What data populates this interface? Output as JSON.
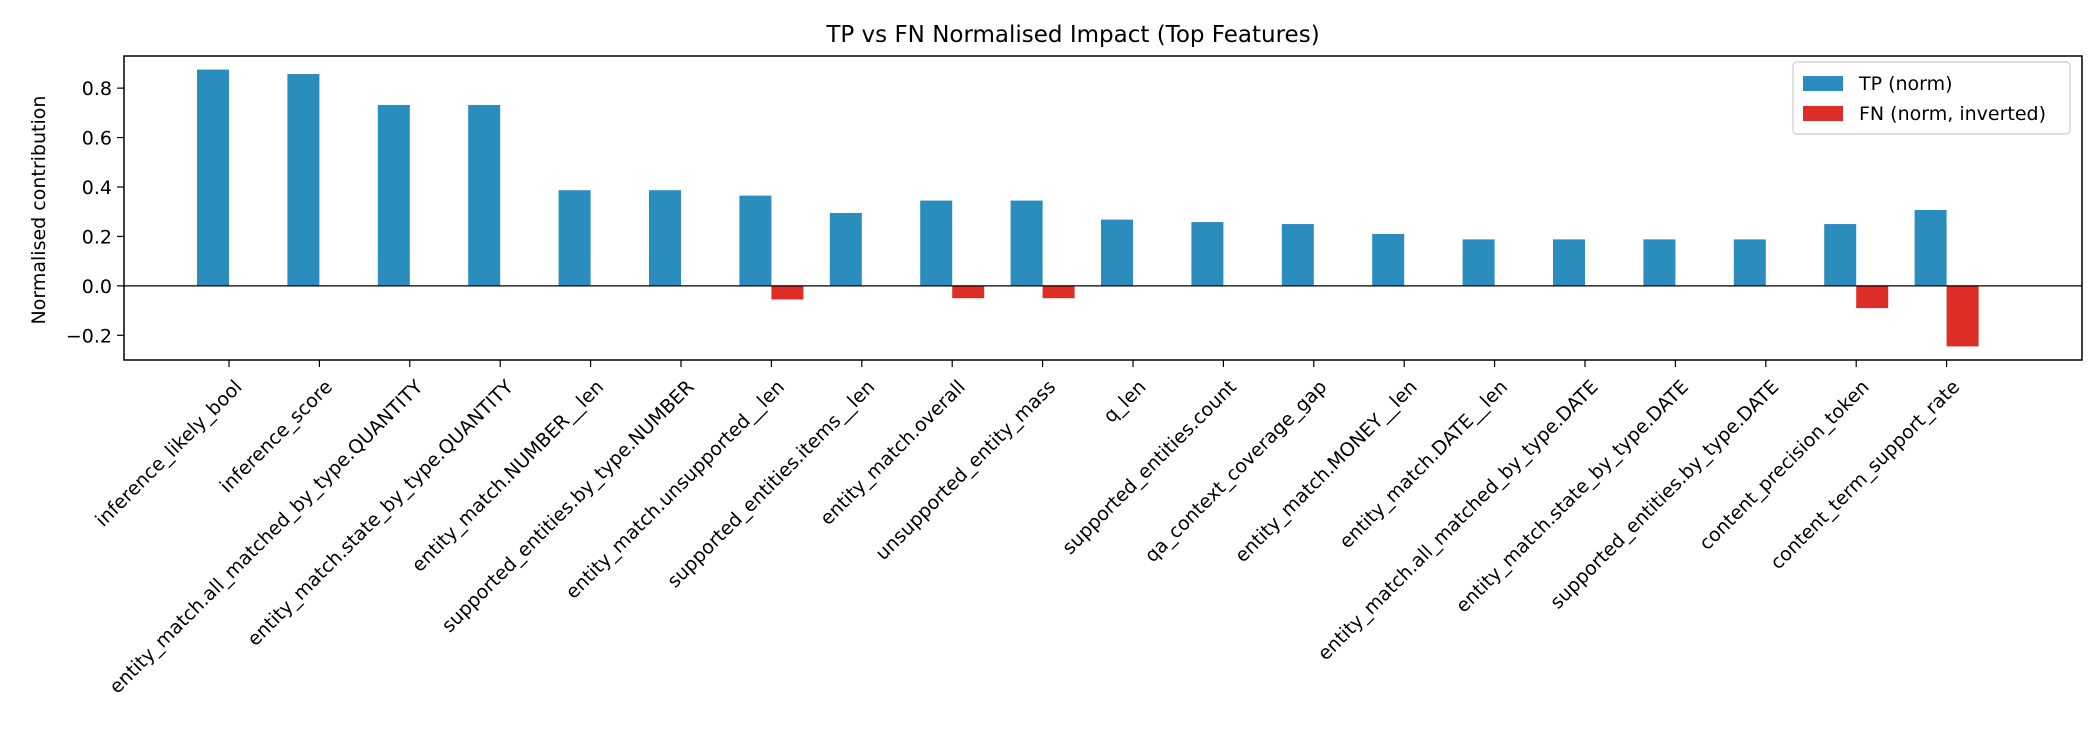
{
  "chart_data": {
    "type": "bar",
    "title": "TP vs FN Normalised Impact (Top Features)",
    "xlabel": "",
    "ylabel": "Normalised contribution",
    "ylim": [
      -0.3,
      0.93
    ],
    "yticks": [
      -0.2,
      0.0,
      0.2,
      0.4,
      0.6,
      0.8
    ],
    "ytick_labels": [
      "−0.2",
      "0.0",
      "0.2",
      "0.4",
      "0.6",
      "0.8"
    ],
    "grid": false,
    "legend_position": "top-right",
    "categories": [
      "inference_likely_bool",
      "inference_score",
      "entity_match.all_matched_by_type.QUANTITY",
      "entity_match.state_by_type.QUANTITY",
      "entity_match.NUMBER__len",
      "supported_entities.by_type.NUMBER",
      "entity_match.unsupported__len",
      "supported_entities.items__len",
      "entity_match.overall",
      "unsupported_entity_mass",
      "q_len",
      "supported_entities.count",
      "qa_context_coverage_gap",
      "entity_match.MONEY__len",
      "entity_match.DATE__len",
      "entity_match.all_matched_by_type.DATE",
      "entity_match.state_by_type.DATE",
      "supported_entities.by_type.DATE",
      "content_precision_token",
      "content_term_support_rate"
    ],
    "series": [
      {
        "name": "TP (norm)",
        "color": "#2b8cbe",
        "values": [
          0.875,
          0.857,
          0.732,
          0.732,
          0.387,
          0.387,
          0.365,
          0.295,
          0.345,
          0.345,
          0.268,
          0.258,
          0.25,
          0.21,
          0.188,
          0.188,
          0.188,
          0.188,
          0.25,
          0.307
        ]
      },
      {
        "name": "FN (norm, inverted)",
        "color": "#de2d26",
        "values": [
          0,
          0,
          0,
          0,
          0,
          0,
          -0.055,
          0,
          -0.05,
          -0.05,
          0,
          0,
          0,
          0,
          0,
          0,
          0,
          0,
          -0.09,
          -0.245
        ]
      }
    ]
  }
}
